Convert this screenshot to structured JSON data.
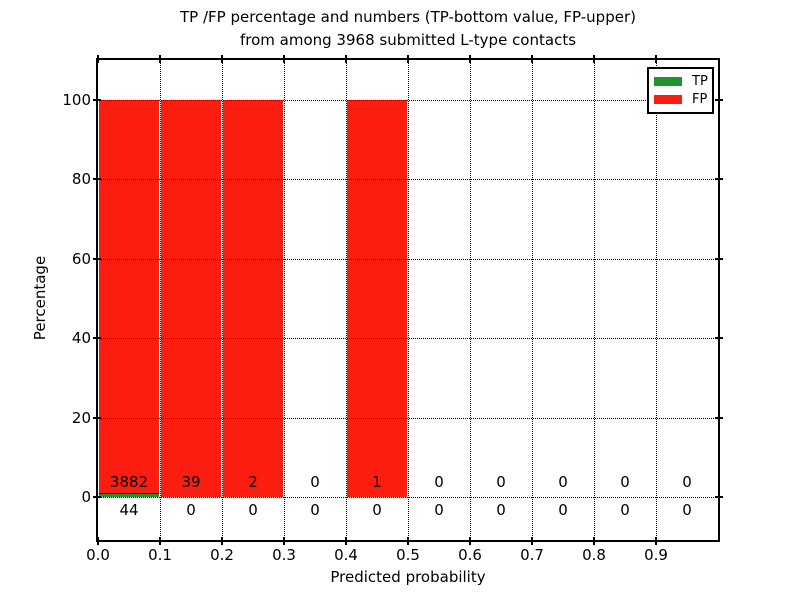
{
  "title": {
    "line1": "TP /FP percentage and numbers (TP-bottom value, FP-upper)",
    "line2": "from among 3968 submitted L-type contacts"
  },
  "y_axis": {
    "label": "Percentage",
    "tick_values": [
      0,
      20,
      40,
      60,
      80,
      100
    ]
  },
  "x_axis": {
    "label": "Predicted probability",
    "tick_labels": [
      "0.0",
      "0.1",
      "0.2",
      "0.3",
      "0.4",
      "0.5",
      "0.6",
      "0.7",
      "0.8",
      "0.9"
    ]
  },
  "legend": {
    "items": [
      {
        "label": "TP",
        "color": "#1e9431"
      },
      {
        "label": "FP",
        "color": "#fb1d10"
      }
    ]
  },
  "chart_data": {
    "type": "bar",
    "stacked": true,
    "title": "TP /FP percentage and numbers (TP-bottom value, FP-upper) from among 3968 submitted L-type contacts",
    "xlabel": "Predicted probability",
    "ylabel": "Percentage",
    "total_contacts": 3968,
    "bins": [
      [
        0.0,
        0.1
      ],
      [
        0.1,
        0.2
      ],
      [
        0.2,
        0.3
      ],
      [
        0.3,
        0.4
      ],
      [
        0.4,
        0.5
      ],
      [
        0.5,
        0.6
      ],
      [
        0.6,
        0.7
      ],
      [
        0.7,
        0.8
      ],
      [
        0.8,
        0.9
      ],
      [
        0.9,
        1.0
      ]
    ],
    "series": [
      {
        "name": "TP",
        "color": "#1e9431",
        "counts": [
          44,
          0,
          0,
          0,
          0,
          0,
          0,
          0,
          0,
          0
        ],
        "percent": [
          1.12,
          0,
          0,
          0,
          0,
          0,
          0,
          0,
          0,
          0
        ]
      },
      {
        "name": "FP",
        "color": "#fb1d10",
        "counts": [
          3882,
          39,
          2,
          0,
          1,
          0,
          0,
          0,
          0,
          0
        ],
        "percent": [
          98.88,
          100,
          100,
          0,
          100,
          0,
          0,
          0,
          0,
          0
        ]
      }
    ],
    "xlim": [
      0.0,
      1.0
    ],
    "ylim": [
      -11,
      110
    ],
    "grid": true,
    "grid_style": "dotted",
    "legend_position": "upper right"
  }
}
